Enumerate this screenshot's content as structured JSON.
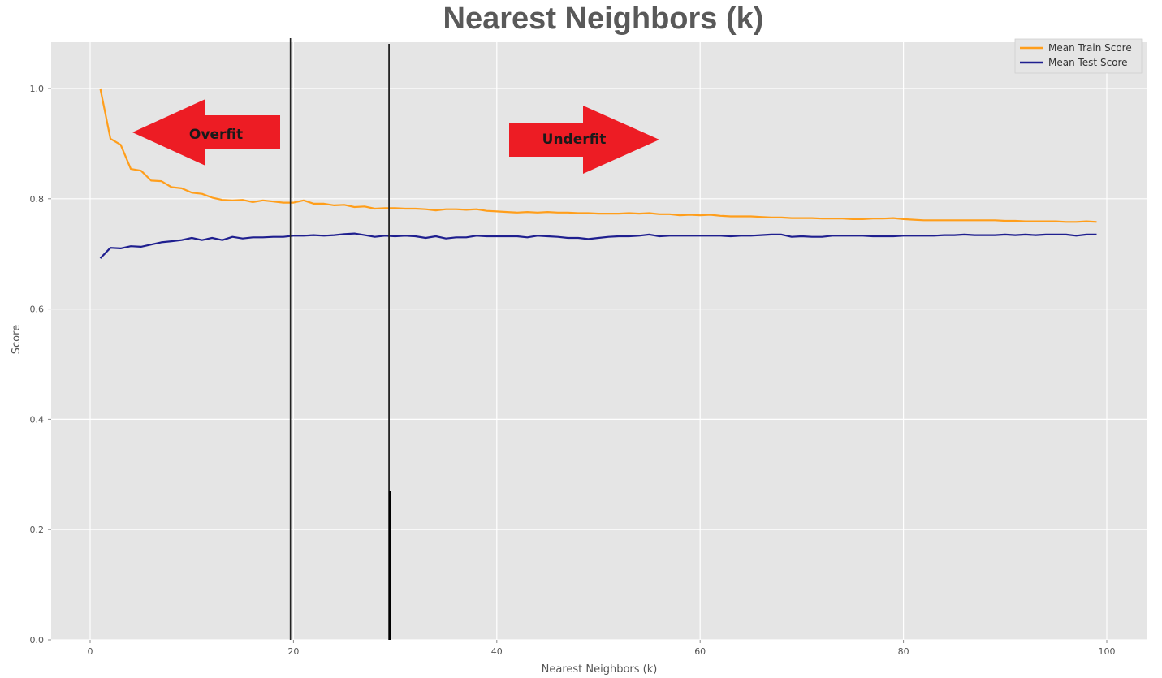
{
  "chart_data": {
    "type": "line",
    "title": "Nearest Neighbors (k)",
    "xlabel": "Nearest Neighbors (k)",
    "ylabel": "Score",
    "xlim": [
      -4,
      104
    ],
    "ylim": [
      0.0,
      1.08
    ],
    "xticks": [
      0,
      20,
      40,
      60,
      80,
      100
    ],
    "yticks": [
      0.0,
      0.2,
      0.4,
      0.6,
      0.8,
      1.0
    ],
    "xtick_labels": [
      "0",
      "20",
      "40",
      "60",
      "80",
      "100"
    ],
    "ytick_labels": [
      "0.0",
      "0.2",
      "0.4",
      "0.6",
      "0.8",
      "1.0"
    ],
    "grid": true,
    "legend_position": "upper right",
    "legend": [
      "Mean Train Score",
      "Mean Test Score"
    ],
    "x": [
      1,
      2,
      3,
      4,
      5,
      6,
      7,
      8,
      9,
      10,
      11,
      12,
      13,
      14,
      15,
      16,
      17,
      18,
      19,
      20,
      21,
      22,
      23,
      24,
      25,
      26,
      27,
      28,
      29,
      30,
      31,
      32,
      33,
      34,
      35,
      36,
      37,
      38,
      39,
      40,
      41,
      42,
      43,
      44,
      45,
      46,
      47,
      48,
      49,
      50,
      51,
      52,
      53,
      54,
      55,
      56,
      57,
      58,
      59,
      60,
      61,
      62,
      63,
      64,
      65,
      66,
      67,
      68,
      69,
      70,
      71,
      72,
      73,
      74,
      75,
      76,
      77,
      78,
      79,
      80,
      81,
      82,
      83,
      84,
      85,
      86,
      87,
      88,
      89,
      90,
      91,
      92,
      93,
      94,
      95,
      96,
      97,
      98,
      99
    ],
    "series": [
      {
        "name": "Mean Train Score",
        "color": "#ff9e1b",
        "values": [
          1.0,
          0.909,
          0.898,
          0.854,
          0.851,
          0.833,
          0.832,
          0.821,
          0.819,
          0.811,
          0.809,
          0.802,
          0.798,
          0.797,
          0.798,
          0.794,
          0.797,
          0.795,
          0.793,
          0.793,
          0.797,
          0.791,
          0.791,
          0.788,
          0.789,
          0.785,
          0.786,
          0.782,
          0.783,
          0.783,
          0.782,
          0.782,
          0.781,
          0.779,
          0.781,
          0.781,
          0.78,
          0.781,
          0.778,
          0.777,
          0.776,
          0.775,
          0.776,
          0.775,
          0.776,
          0.775,
          0.775,
          0.774,
          0.774,
          0.773,
          0.773,
          0.773,
          0.774,
          0.773,
          0.774,
          0.772,
          0.772,
          0.77,
          0.771,
          0.77,
          0.771,
          0.769,
          0.768,
          0.768,
          0.768,
          0.767,
          0.766,
          0.766,
          0.765,
          0.765,
          0.765,
          0.764,
          0.764,
          0.764,
          0.763,
          0.763,
          0.764,
          0.764,
          0.765,
          0.763,
          0.762,
          0.761,
          0.761,
          0.761,
          0.761,
          0.761,
          0.761,
          0.761,
          0.761,
          0.76,
          0.76,
          0.759,
          0.759,
          0.759,
          0.759,
          0.758,
          0.758,
          0.759,
          0.758
        ]
      },
      {
        "name": "Mean Test Score",
        "color": "#1f1f8f",
        "values": [
          0.692,
          0.711,
          0.71,
          0.714,
          0.713,
          0.717,
          0.721,
          0.723,
          0.725,
          0.729,
          0.725,
          0.729,
          0.725,
          0.731,
          0.728,
          0.73,
          0.73,
          0.731,
          0.731,
          0.733,
          0.733,
          0.734,
          0.733,
          0.734,
          0.736,
          0.737,
          0.734,
          0.731,
          0.733,
          0.732,
          0.733,
          0.732,
          0.729,
          0.732,
          0.728,
          0.73,
          0.73,
          0.733,
          0.732,
          0.732,
          0.732,
          0.732,
          0.73,
          0.733,
          0.732,
          0.731,
          0.729,
          0.729,
          0.727,
          0.729,
          0.731,
          0.732,
          0.732,
          0.733,
          0.735,
          0.732,
          0.733,
          0.733,
          0.733,
          0.733,
          0.733,
          0.733,
          0.732,
          0.733,
          0.733,
          0.734,
          0.735,
          0.735,
          0.731,
          0.732,
          0.731,
          0.731,
          0.733,
          0.733,
          0.733,
          0.733,
          0.732,
          0.732,
          0.732,
          0.733,
          0.733,
          0.733,
          0.733,
          0.734,
          0.734,
          0.735,
          0.734,
          0.734,
          0.734,
          0.735,
          0.734,
          0.735,
          0.734,
          0.735,
          0.735,
          0.735,
          0.733,
          0.735,
          0.735
        ]
      }
    ],
    "annotations": [
      {
        "type": "vline",
        "x": 19.7,
        "color": "#222222"
      },
      {
        "type": "vline",
        "x": 29.4,
        "color": "#222222"
      },
      {
        "type": "arrow",
        "direction": "left",
        "label": "Overfit",
        "color": "#ed1c24"
      },
      {
        "type": "arrow",
        "direction": "right",
        "label": "Underfit",
        "color": "#ed1c24"
      }
    ]
  },
  "colors": {
    "plot_bg": "#e5e5e5",
    "grid": "#ffffff",
    "tick_text": "#555555",
    "title_text": "#595959",
    "arrow_fill": "#ed1c24",
    "arrow_text": "#1a1a1a"
  }
}
